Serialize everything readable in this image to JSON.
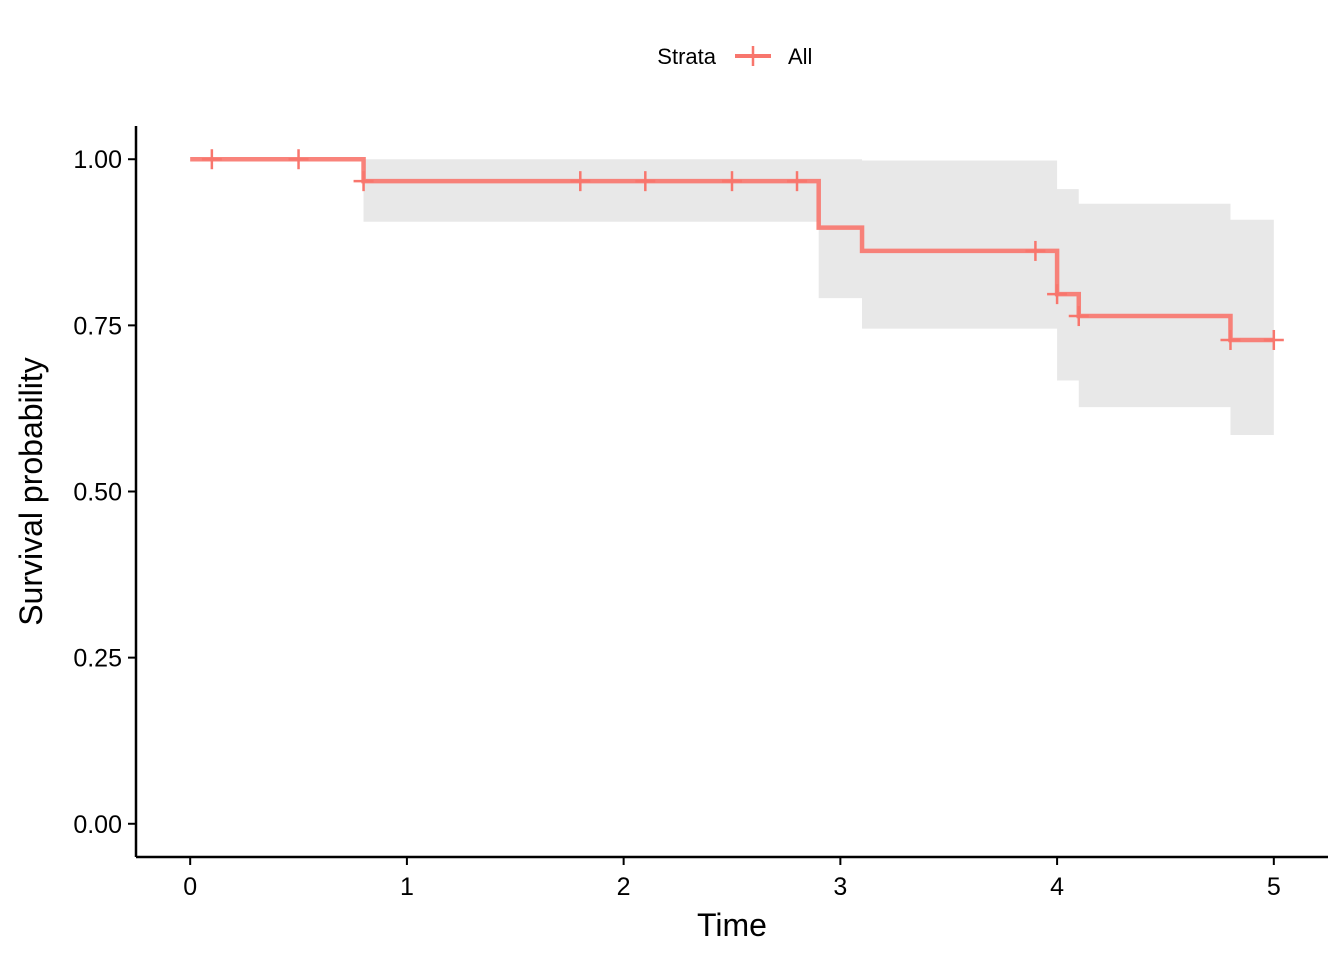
{
  "chart_data": {
    "type": "line",
    "subtype": "kaplan-meier step survival curve with confidence band",
    "title": "",
    "xlabel": "Time",
    "ylabel": "Survival probability",
    "xlim": [
      -0.25,
      5.25
    ],
    "ylim": [
      -0.05,
      1.05
    ],
    "x_ticks": [
      0,
      1,
      2,
      3,
      4,
      5
    ],
    "y_ticks": [
      0.0,
      0.25,
      0.5,
      0.75,
      1.0
    ],
    "x_tick_labels": [
      "0",
      "1",
      "2",
      "3",
      "4",
      "5"
    ],
    "y_tick_labels": [
      "0.00",
      "0.25",
      "0.50",
      "0.75",
      "1.00"
    ],
    "grid": false,
    "legend": {
      "title": "Strata",
      "position": "top",
      "entries": [
        "All"
      ]
    },
    "colors": {
      "line": "#F8766D",
      "band": "#E8E8E8",
      "axis": "#000000"
    },
    "series": [
      {
        "name": "All",
        "step_x": [
          0,
          0.8,
          2.9,
          3.1,
          4.0,
          4.1,
          4.8,
          5.0
        ],
        "step_y": [
          1.0,
          0.967,
          0.897,
          0.862,
          0.797,
          0.764,
          0.728,
          0.728
        ],
        "band_lower": [
          1.0,
          0.906,
          0.791,
          0.745,
          0.667,
          0.627,
          0.585,
          0.585
        ],
        "band_upper": [
          1.0,
          1.0,
          1.0,
          0.998,
          0.955,
          0.933,
          0.909,
          0.909
        ],
        "censor_x": [
          0.1,
          0.5,
          0.8,
          1.8,
          2.1,
          2.5,
          2.8,
          3.9,
          4.0,
          4.1,
          4.8,
          5.0
        ]
      }
    ]
  }
}
